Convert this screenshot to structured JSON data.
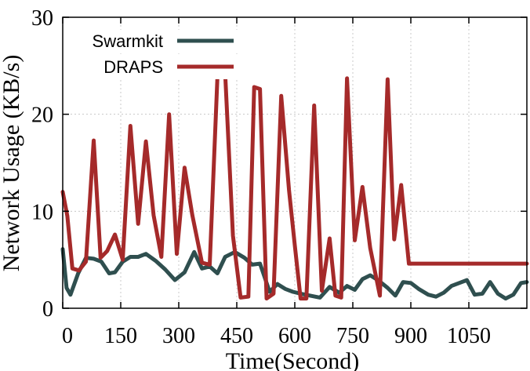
{
  "chart_data": {
    "type": "line",
    "xlabel": "Time(Second)",
    "ylabel": "Network Usage (KB/s)",
    "xlim": [
      0,
      1200
    ],
    "ylim": [
      0,
      30
    ],
    "xticks": [
      0,
      150,
      300,
      450,
      600,
      750,
      900,
      1050
    ],
    "yticks": [
      0,
      10,
      20,
      30
    ],
    "grid": true,
    "legend_position": "top-left",
    "series": [
      {
        "name": "Swarmkit",
        "color": "#2f4f4f",
        "x": [
          0,
          10,
          20,
          40,
          60,
          80,
          100,
          120,
          135,
          155,
          175,
          195,
          215,
          240,
          265,
          290,
          315,
          340,
          360,
          380,
          400,
          420,
          445,
          470,
          490,
          510,
          535,
          555,
          575,
          595,
          615,
          640,
          665,
          690,
          715,
          735,
          755,
          775,
          795,
          815,
          840,
          860,
          880,
          900,
          920,
          945,
          965,
          985,
          1005,
          1025,
          1045,
          1065,
          1085,
          1105,
          1125,
          1145,
          1165,
          1185,
          1200
        ],
        "values": [
          6.1,
          2.1,
          1.4,
          3.6,
          5.2,
          5.1,
          4.8,
          3.6,
          3.7,
          4.8,
          5.3,
          5.3,
          5.6,
          4.9,
          4.0,
          2.9,
          3.7,
          5.8,
          4.1,
          4.3,
          3.6,
          5.3,
          5.8,
          5.2,
          4.5,
          4.6,
          1.7,
          2.5,
          2.0,
          1.7,
          1.5,
          1.3,
          1.1,
          2.2,
          1.6,
          2.3,
          1.9,
          3.0,
          3.4,
          2.9,
          2.1,
          1.3,
          2.7,
          2.6,
          2.0,
          1.4,
          1.2,
          1.6,
          2.3,
          2.6,
          2.9,
          1.4,
          1.5,
          2.7,
          1.5,
          1.0,
          1.4,
          2.6,
          2.7
        ]
      },
      {
        "name": "DRAPS",
        "color": "#a52a2a",
        "x": [
          0,
          12,
          25,
          42,
          60,
          80,
          98,
          115,
          135,
          155,
          175,
          195,
          215,
          235,
          255,
          275,
          295,
          315,
          335,
          360,
          380,
          400,
          420,
          440,
          460,
          480,
          495,
          510,
          527,
          545,
          565,
          585,
          600,
          615,
          630,
          650,
          670,
          690,
          705,
          720,
          735,
          755,
          775,
          795,
          820,
          840,
          857,
          875,
          895,
          910,
          925,
          945,
          962,
          980,
          997,
          1015,
          1035,
          1055,
          1075,
          1095,
          1105,
          1125,
          1145,
          1165,
          1185,
          1200
        ],
        "values": [
          12.0,
          9.5,
          4.1,
          3.9,
          4.8,
          17.3,
          5.2,
          5.9,
          7.6,
          5.0,
          18.8,
          8.7,
          17.2,
          9.6,
          5.3,
          20.0,
          5.6,
          14.5,
          9.6,
          4.7,
          4.5,
          23.8,
          24.2,
          7.5,
          1.1,
          1.2,
          22.8,
          22.6,
          1.0,
          1.5,
          21.9,
          12.2,
          6.5,
          1.0,
          1.0,
          20.9,
          1.8,
          7.2,
          1.3,
          1.1,
          23.7,
          7.0,
          12.5,
          6.2,
          1.3,
          23.6,
          7.1,
          12.7,
          4.6,
          4.6,
          4.6,
          4.6,
          4.6,
          4.6,
          4.6,
          4.6,
          4.6,
          4.6,
          4.6,
          4.6,
          4.6,
          4.6,
          4.6,
          4.6,
          4.6,
          4.6
        ]
      }
    ]
  }
}
